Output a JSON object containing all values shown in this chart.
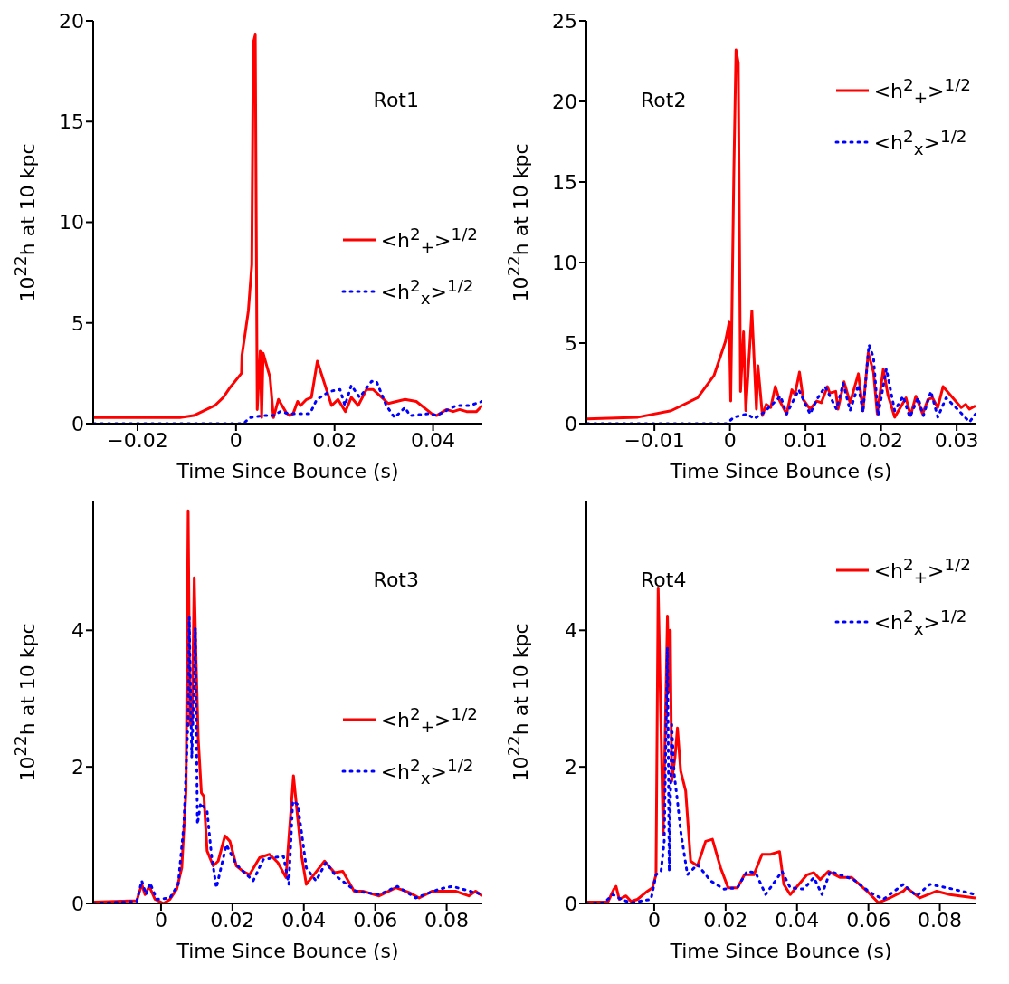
{
  "chart_data": [
    {
      "type": "line",
      "title": "Rot1",
      "xlabel": "Time Since Bounce (s)",
      "ylabel": "10$^{22}$h at 10 kpc",
      "xlim": [
        -0.029,
        0.05
      ],
      "xticks": [
        {
          "value": -0.02,
          "label": "−0.02"
        },
        0,
        0.02,
        0.04
      ],
      "ylim": [
        0,
        20
      ],
      "yticks": [
        0,
        5,
        10,
        15,
        20
      ],
      "legend": "right",
      "marker": "none",
      "series": [
        {
          "name": "<h$^{2}$$_{+}$>$^{1/2}$",
          "color": "#ff0000",
          "line_style": "solid",
          "x": [
            -0.0289,
            -0.0114,
            -0.0086,
            -0.0043,
            -0.0026,
            -0.0012,
            0.0011,
            0.0012,
            0.0018,
            0.0025,
            0.0032,
            0.0035,
            0.0039,
            0.0043,
            0.0049,
            0.0052,
            0.0055,
            0.0069,
            0.0076,
            0.0086,
            0.0103,
            0.0109,
            0.0116,
            0.0125,
            0.0131,
            0.0143,
            0.0153,
            0.0165,
            0.0194,
            0.0207,
            0.0222,
            0.0234,
            0.0248,
            0.0265,
            0.0278,
            0.0309,
            0.0343,
            0.0366,
            0.0397,
            0.0407,
            0.0427,
            0.0441,
            0.0454,
            0.0468,
            0.0488,
            0.05
          ],
          "values": [
            0.3,
            0.3,
            0.4,
            0.9,
            1.3,
            1.8,
            2.5,
            3.4,
            4.4,
            5.6,
            7.9,
            18.9,
            19.3,
            0.7,
            3.6,
            0.3,
            3.5,
            2.3,
            0.3,
            1.2,
            0.5,
            0.4,
            0.5,
            1.1,
            0.9,
            1.2,
            1.3,
            3.1,
            0.9,
            1.2,
            0.6,
            1.3,
            0.9,
            1.7,
            1.7,
            1.0,
            1.2,
            1.1,
            0.5,
            0.4,
            0.7,
            0.6,
            0.7,
            0.6,
            0.6,
            0.9
          ]
        },
        {
          "name": "<h$^{2}$$_{x}$>$^{1/2}$",
          "color": "#0000ff",
          "line_style": "dotted",
          "x": [
            -0.0289,
            0.0015,
            0.0028,
            0.0055,
            0.0076,
            0.009,
            0.0106,
            0.015,
            0.0164,
            0.019,
            0.0211,
            0.0221,
            0.0234,
            0.0251,
            0.0275,
            0.0285,
            0.0305,
            0.0322,
            0.0343,
            0.0353,
            0.0393,
            0.0407,
            0.0447,
            0.0474,
            0.05
          ],
          "values": [
            0,
            0,
            0.3,
            0.4,
            0.4,
            0.6,
            0.5,
            0.5,
            1.2,
            1.6,
            1.7,
            0.9,
            1.9,
            1.3,
            2.1,
            2.1,
            0.9,
            0.3,
            0.8,
            0.4,
            0.5,
            0.4,
            0.9,
            0.9,
            1.1
          ]
        }
      ]
    },
    {
      "type": "line",
      "title": "Rot2",
      "xlabel": "Time Since Bounce (s)",
      "ylabel": "10$^{22}$h at 10 kpc",
      "xlim": [
        -0.019,
        0.0325
      ],
      "xticks": [
        {
          "value": -0.01,
          "label": "−0.01"
        },
        0,
        0.01,
        0.02,
        0.03
      ],
      "ylim": [
        0,
        25
      ],
      "yticks": [
        0,
        5,
        10,
        15,
        20,
        25
      ],
      "legend": "top right",
      "marker": "none",
      "series": [
        {
          "name": "<h$^{2}$$_{+}$>$^{1/2}$",
          "color": "#ff0000",
          "line_style": "solid",
          "x": [
            -0.0189,
            -0.0122,
            -0.0078,
            -0.0043,
            -0.0021,
            -0.0006,
            -0.0001,
            0.0001,
            0.0005,
            0.0008,
            0.0011,
            0.0014,
            0.0018,
            0.0021,
            0.0029,
            0.0035,
            0.0037,
            0.0043,
            0.0048,
            0.0054,
            0.006,
            0.0066,
            0.0075,
            0.0082,
            0.0086,
            0.0092,
            0.0097,
            0.0106,
            0.0115,
            0.0121,
            0.0129,
            0.0132,
            0.014,
            0.0143,
            0.0151,
            0.0159,
            0.017,
            0.0176,
            0.0183,
            0.019,
            0.0195,
            0.0203,
            0.0209,
            0.0218,
            0.0233,
            0.0239,
            0.0246,
            0.0255,
            0.0262,
            0.0268,
            0.0275,
            0.0282,
            0.0306,
            0.0312,
            0.0317,
            0.0325
          ],
          "values": [
            0.3,
            0.4,
            0.8,
            1.6,
            3.0,
            5.1,
            6.3,
            1.4,
            15.2,
            23.2,
            22.4,
            2.0,
            5.7,
            0.8,
            7.0,
            0.9,
            3.6,
            0.5,
            1.2,
            1.0,
            2.3,
            1.4,
            0.6,
            2.1,
            1.8,
            3.2,
            1.5,
            0.9,
            1.4,
            1.3,
            2.3,
            1.9,
            2.0,
            0.9,
            2.6,
            1.3,
            3.1,
            0.8,
            4.4,
            3.2,
            0.6,
            3.4,
            1.8,
            0.4,
            1.6,
            0.5,
            1.7,
            0.6,
            1.5,
            1.6,
            1.0,
            2.3,
            1.0,
            1.2,
            0.9,
            1.1
          ]
        },
        {
          "name": "<h$^{2}$$_{x}$>$^{1/2}$",
          "color": "#0000ff",
          "line_style": "dotted",
          "x": [
            -0.0189,
            -0.0004,
            0.0005,
            0.0023,
            0.0032,
            0.0045,
            0.0067,
            0.0075,
            0.0091,
            0.0106,
            0.0115,
            0.0126,
            0.0141,
            0.015,
            0.0159,
            0.017,
            0.0176,
            0.0184,
            0.019,
            0.0196,
            0.0207,
            0.0218,
            0.0229,
            0.0238,
            0.0249,
            0.0256,
            0.0266,
            0.0275,
            0.0286,
            0.0301,
            0.0317,
            0.0325
          ],
          "values": [
            0,
            0,
            0.4,
            0.6,
            0.3,
            0.7,
            1.7,
            0.6,
            2.1,
            0.6,
            1.5,
            2.3,
            0.9,
            2.5,
            0.8,
            2.4,
            0.7,
            4.9,
            4.1,
            0.5,
            3.4,
            0.8,
            1.7,
            0.4,
            1.6,
            0.5,
            2.0,
            0.4,
            1.6,
            0.9,
            0.1,
            0.6
          ]
        }
      ]
    },
    {
      "type": "line",
      "title": "Rot3",
      "xlabel": "Time Since Bounce (s)",
      "ylabel": "10$^{22}$h at 10 kpc",
      "xlim": [
        -0.019,
        0.09
      ],
      "xticks": [
        0,
        0.02,
        0.04,
        0.06,
        0.08
      ],
      "ylim": [
        0,
        5.9
      ],
      "yticks": [
        0,
        2,
        4
      ],
      "legend": "right",
      "marker": "none",
      "series": [
        {
          "name": "<h$^{2}$$_{+}$>$^{1/2}$",
          "color": "#ff0000",
          "line_style": "solid",
          "x": [
            -0.0189,
            -0.0068,
            -0.0054,
            -0.0045,
            -0.0033,
            -0.0017,
            0.0007,
            0.0025,
            0.0044,
            0.0058,
            0.007,
            0.0076,
            0.0081,
            0.0087,
            0.0093,
            0.0098,
            0.0104,
            0.0113,
            0.012,
            0.0129,
            0.0146,
            0.016,
            0.0179,
            0.0193,
            0.0211,
            0.023,
            0.0248,
            0.0276,
            0.0304,
            0.0327,
            0.035,
            0.0371,
            0.0393,
            0.0407,
            0.0425,
            0.0458,
            0.0486,
            0.0509,
            0.0541,
            0.0565,
            0.0611,
            0.0658,
            0.0695,
            0.0723,
            0.076,
            0.0825,
            0.0862,
            0.0881,
            0.09
          ],
          "values": [
            0.02,
            0.04,
            0.28,
            0.13,
            0.25,
            0.06,
            0,
            0.06,
            0.21,
            0.52,
            1.65,
            5.75,
            2.62,
            2.62,
            4.77,
            3.6,
            2.43,
            1.62,
            1.57,
            0.77,
            0.55,
            0.62,
            0.99,
            0.91,
            0.55,
            0.47,
            0.42,
            0.67,
            0.72,
            0.6,
            0.38,
            1.87,
            0.72,
            0.28,
            0.4,
            0.62,
            0.45,
            0.47,
            0.18,
            0.18,
            0.11,
            0.23,
            0.16,
            0.08,
            0.18,
            0.18,
            0.11,
            0.18,
            0.11
          ]
        },
        {
          "name": "<h$^{2}$$_{x}$>$^{1/2}$",
          "color": "#0000ff",
          "line_style": "dotted",
          "x": [
            -0.0189,
            -0.0068,
            -0.0054,
            -0.0042,
            -0.0031,
            -0.0012,
            0.0025,
            0.0048,
            0.0064,
            0.0076,
            0.0079,
            0.0086,
            0.0092,
            0.0096,
            0.0102,
            0.0111,
            0.0129,
            0.0141,
            0.0155,
            0.0183,
            0.0211,
            0.0258,
            0.0286,
            0.0313,
            0.0343,
            0.0358,
            0.0369,
            0.0383,
            0.0407,
            0.0434,
            0.0462,
            0.049,
            0.0546,
            0.0611,
            0.0662,
            0.0714,
            0.0779,
            0.0816,
            0.09
          ],
          "values": [
            0,
            0.03,
            0.33,
            0.13,
            0.3,
            0.06,
            0.08,
            0.28,
            1.16,
            2.72,
            4.19,
            2.13,
            3.11,
            4.04,
            1.16,
            1.47,
            1.35,
            0.72,
            0.23,
            0.86,
            0.57,
            0.33,
            0.64,
            0.67,
            0.69,
            0.28,
            1.5,
            1.45,
            0.52,
            0.33,
            0.6,
            0.4,
            0.18,
            0.13,
            0.25,
            0.08,
            0.21,
            0.25,
            0.13
          ]
        }
      ]
    },
    {
      "type": "line",
      "title": "Rot4",
      "xlabel": "Time Since Bounce (s)",
      "ylabel": "10$^{22}$h at 10 kpc",
      "xlim": [
        -0.019,
        0.09
      ],
      "xticks": [
        0,
        0.02,
        0.04,
        0.06,
        0.08
      ],
      "ylim": [
        0,
        5.9
      ],
      "yticks": [
        0,
        2,
        4
      ],
      "legend": "top right",
      "marker": "none",
      "series": [
        {
          "name": "<h$^{2}$$_{+}$>$^{1/2}$",
          "color": "#ff0000",
          "line_style": "solid",
          "x": [
            -0.0189,
            -0.013,
            -0.0113,
            -0.0107,
            -0.0098,
            -0.0079,
            -0.0065,
            -0.0047,
            -0.0019,
            -0.0005,
            0.0005,
            0.0011,
            0.0025,
            0.0037,
            0.0042,
            0.0045,
            0.0049,
            0.0058,
            0.0065,
            0.0074,
            0.0088,
            0.0102,
            0.0121,
            0.0144,
            0.0163,
            0.0186,
            0.0207,
            0.0233,
            0.0253,
            0.0279,
            0.0302,
            0.0326,
            0.0351,
            0.0363,
            0.0381,
            0.0428,
            0.0447,
            0.0465,
            0.0488,
            0.0521,
            0.0553,
            0.06,
            0.0628,
            0.066,
            0.0698,
            0.0707,
            0.0744,
            0.0791,
            0.0828,
            0.0856,
            0.09
          ],
          "values": [
            0.02,
            0.02,
            0.21,
            0.25,
            0.06,
            0.11,
            0.03,
            0.06,
            0.18,
            0.23,
            0.42,
            4.62,
            1.01,
            4.21,
            3.11,
            4.0,
            1.79,
            2.13,
            2.57,
            1.94,
            1.65,
            0.62,
            0.55,
            0.91,
            0.94,
            0.52,
            0.23,
            0.23,
            0.42,
            0.42,
            0.72,
            0.72,
            0.76,
            0.28,
            0.13,
            0.42,
            0.45,
            0.35,
            0.47,
            0.38,
            0.38,
            0.16,
            0.01,
            0.08,
            0.18,
            0.23,
            0.08,
            0.18,
            0.13,
            0.11,
            0.08
          ]
        },
        {
          "name": "<h$^{2}$$_{x}$>$^{1/2}$",
          "color": "#0000ff",
          "line_style": "dotted",
          "x": [
            -0.0189,
            -0.014,
            -0.0116,
            -0.0093,
            -0.0065,
            -0.0009,
            0.0005,
            0.0019,
            0.0028,
            0.0037,
            0.0042,
            0.0049,
            0.0056,
            0.0065,
            0.0074,
            0.0093,
            0.0121,
            0.0158,
            0.0195,
            0.0233,
            0.026,
            0.0284,
            0.0312,
            0.0358,
            0.0381,
            0.0419,
            0.0447,
            0.047,
            0.0493,
            0.0558,
            0.0605,
            0.0642,
            0.0698,
            0.0735,
            0.0772,
            0.0837,
            0.09
          ],
          "values": [
            0,
            0.01,
            0.13,
            0.06,
            0.01,
            0.06,
            0.42,
            0.47,
            0.91,
            3.75,
            0.47,
            2.62,
            1.89,
            1.5,
            1.06,
            0.42,
            0.57,
            0.33,
            0.21,
            0.23,
            0.47,
            0.45,
            0.13,
            0.47,
            0.23,
            0.21,
            0.38,
            0.13,
            0.47,
            0.35,
            0.16,
            0.06,
            0.28,
            0.11,
            0.28,
            0.21,
            0.13
          ]
        }
      ]
    }
  ]
}
